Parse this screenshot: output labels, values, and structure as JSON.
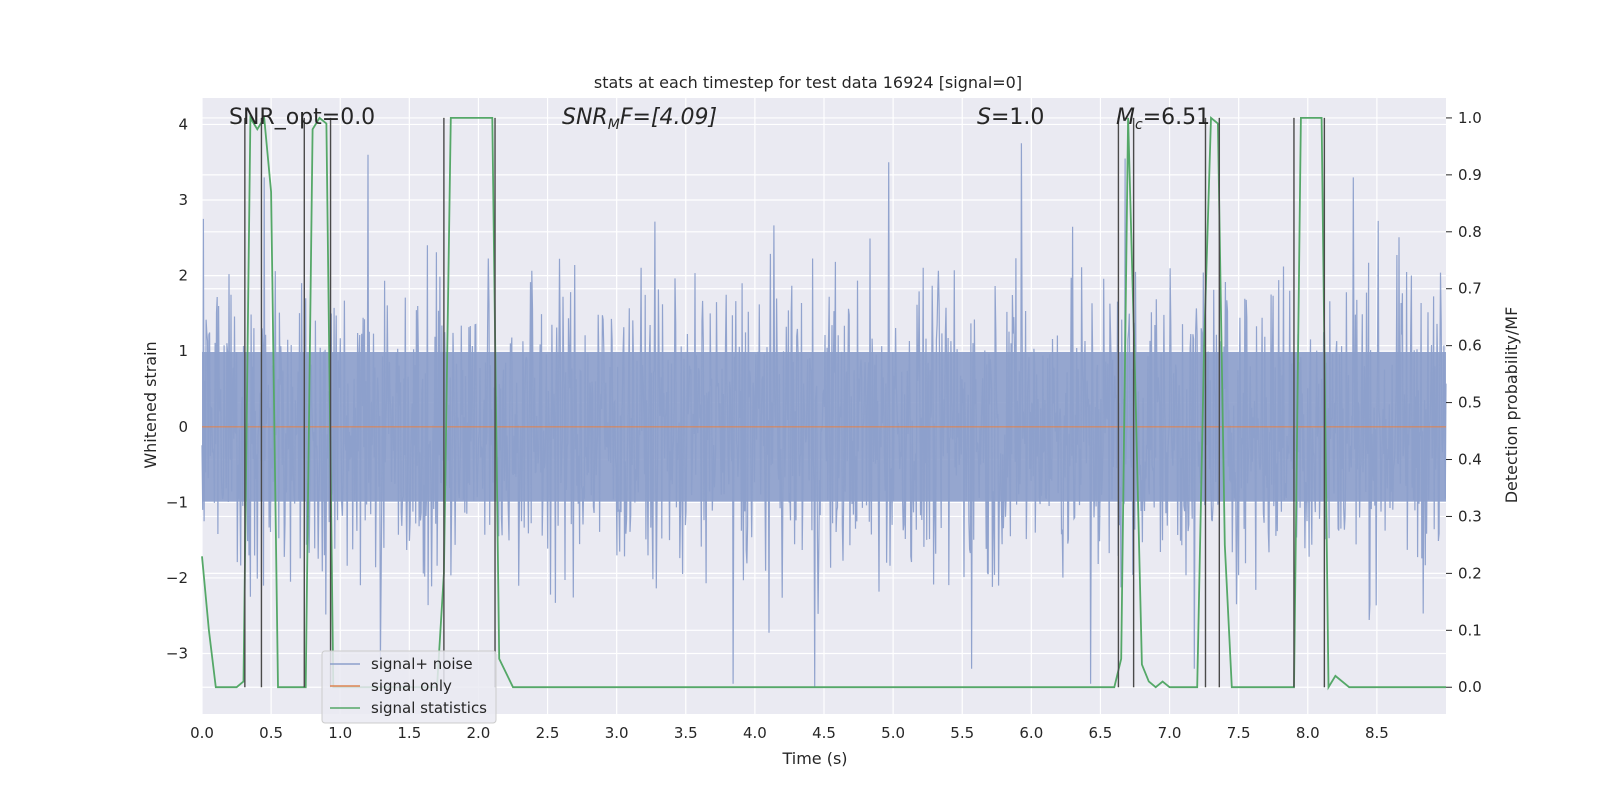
{
  "chart_data": {
    "type": "line",
    "title": "stats at each timestep for test data 16924 [signal=0]",
    "xlabel": "Time (s)",
    "ylabel": "Whitened strain",
    "y2label": "Detection probability/MF",
    "xlim": [
      0,
      9.0
    ],
    "ylim": [
      -3.8,
      4.35
    ],
    "y2lim": [
      -0.047,
      1.035
    ],
    "xticks": [
      0.0,
      0.5,
      1.0,
      1.5,
      2.0,
      2.5,
      3.0,
      3.5,
      4.0,
      4.5,
      5.0,
      5.5,
      6.0,
      6.5,
      7.0,
      7.5,
      8.0,
      8.5
    ],
    "xtick_labels": [
      "0.0",
      "0.5",
      "1.0",
      "1.5",
      "2.0",
      "2.5",
      "3.0",
      "3.5",
      "4.0",
      "4.5",
      "5.0",
      "5.5",
      "6.0",
      "6.5",
      "7.0",
      "7.5",
      "8.0",
      "8.5"
    ],
    "yticks": [
      4,
      3,
      2,
      1,
      0,
      -1,
      -2,
      -3
    ],
    "ytick_labels": [
      "4",
      "3",
      "2",
      "1",
      "0",
      "−1",
      "−2",
      "−3"
    ],
    "y2ticks": [
      1.0,
      0.9,
      0.8,
      0.7,
      0.6,
      0.5,
      0.4,
      0.3,
      0.2,
      0.1,
      0.0
    ],
    "y2tick_labels": [
      "1.0",
      "0.9",
      "0.8",
      "0.7",
      "0.6",
      "0.5",
      "0.4",
      "0.3",
      "0.2",
      "0.1",
      "0.0"
    ],
    "grid": true,
    "legend_position": "lower-left",
    "annotations": {
      "snr_opt": "SNR_opt=0.0",
      "snr_mf_sym": "SNR",
      "snr_mf_sub": "M",
      "snr_mf_rest": "F=[4.09]",
      "s_sym": "S",
      "s_rest": "=1.0",
      "mc_sym": "M",
      "mc_sub": "c",
      "mc_rest": "=6.51"
    },
    "series": [
      {
        "name": "signal+ noise",
        "color": "#8c9fcb",
        "style": "noise",
        "amplitude_envelope": {
          "typical_max": 1.8,
          "typical_min": -1.8,
          "peak_max": 3.75,
          "peak_min": -3.45
        },
        "peaks": [
          {
            "x": 1.2,
            "y": 3.6
          },
          {
            "x": 4.97,
            "y": 3.5
          },
          {
            "x": 5.93,
            "y": 3.75
          },
          {
            "x": 6.68,
            "y": 3.55
          },
          {
            "x": 8.33,
            "y": 3.3
          },
          {
            "x": 0.45,
            "y": 3.3
          },
          {
            "x": 3.84,
            "y": -3.4
          },
          {
            "x": 4.43,
            "y": -3.45
          },
          {
            "x": 6.43,
            "y": -3.4
          },
          {
            "x": 1.29,
            "y": -3.1
          },
          {
            "x": 7.18,
            "y": -3.2
          },
          {
            "x": 5.57,
            "y": -3.2
          }
        ]
      },
      {
        "name": "signal only",
        "color": "#dd8452",
        "x": [
          0.0,
          9.0
        ],
        "y": [
          0.0,
          0.0
        ]
      },
      {
        "name": "signal statistics",
        "color": "#55a868",
        "axis": "right",
        "x": [
          0.0,
          0.05,
          0.1,
          0.25,
          0.3,
          0.35,
          0.4,
          0.45,
          0.5,
          0.55,
          0.6,
          0.75,
          0.8,
          0.85,
          0.9,
          0.95,
          1.0,
          1.7,
          1.75,
          1.8,
          2.1,
          2.15,
          2.25,
          6.6,
          6.65,
          6.7,
          6.75,
          6.8,
          6.85,
          6.9,
          6.95,
          7.0,
          7.2,
          7.25,
          7.3,
          7.35,
          7.4,
          7.45,
          7.5,
          7.9,
          7.95,
          8.1,
          8.15,
          8.2,
          8.3,
          9.0
        ],
        "y": [
          0.23,
          0.1,
          0.0,
          0.0,
          0.01,
          1.0,
          0.98,
          1.0,
          0.87,
          0.0,
          0.0,
          0.0,
          0.98,
          1.0,
          0.99,
          0.0,
          0.0,
          0.0,
          0.2,
          1.0,
          1.0,
          0.05,
          0.0,
          0.0,
          0.05,
          1.0,
          0.55,
          0.04,
          0.01,
          0.0,
          0.01,
          0.0,
          0.0,
          0.6,
          1.0,
          0.99,
          0.25,
          0.0,
          0.0,
          0.0,
          1.0,
          1.0,
          0.0,
          0.02,
          0.0,
          0.0
        ]
      }
    ],
    "vertical_markers": [
      0.31,
      0.43,
      0.74,
      0.93,
      1.75,
      2.12,
      6.63,
      6.74,
      7.26,
      7.36,
      7.9,
      8.12
    ]
  }
}
